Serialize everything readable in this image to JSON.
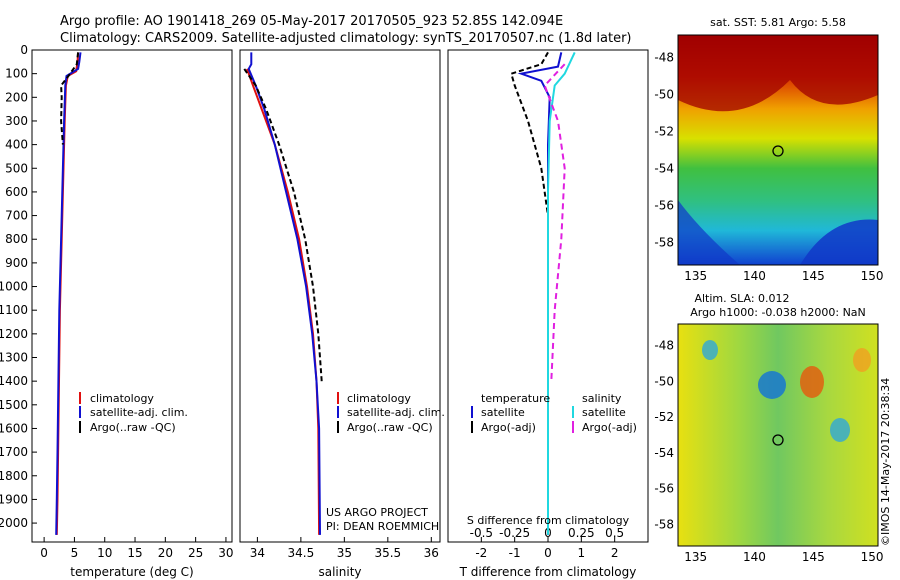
{
  "title_line1": "Argo profile: AO 1901418_269 05-May-2017 20170505_923 52.85S 142.094E",
  "title_line2": "Climatology: CARS2009. Satellite-adjusted climatology: synTS_20170507.nc (1.8d later)",
  "colors": {
    "climatology": "#e01010",
    "satellite": "#1010d0",
    "argo": "#000000",
    "sal_satellite": "#20d8e0",
    "sal_argo": "#e020e0"
  },
  "chart_data": [
    {
      "id": "temperature",
      "type": "line",
      "xlabel": "temperature (deg C)",
      "ylabel": "",
      "xlim": [
        -2,
        31
      ],
      "ylim": [
        2080,
        0
      ],
      "xticks": [
        0,
        5,
        10,
        15,
        20,
        25,
        30
      ],
      "yticks": [
        0,
        100,
        200,
        300,
        400,
        500,
        600,
        700,
        800,
        900,
        1000,
        1100,
        1200,
        1300,
        1400,
        1500,
        1600,
        1700,
        1800,
        1900,
        2000
      ],
      "legend": [
        "climatology",
        "satellite-adj. clim.",
        "Argo(..raw -QC)"
      ],
      "series": [
        {
          "name": "climatology",
          "color": "climatology",
          "dash": "",
          "points": [
            [
              5.6,
              10
            ],
            [
              5.5,
              50
            ],
            [
              5.3,
              90
            ],
            [
              3.9,
              110
            ],
            [
              3.6,
              150
            ],
            [
              3.4,
              300
            ],
            [
              3.2,
              500
            ],
            [
              3.0,
              700
            ],
            [
              2.8,
              900
            ],
            [
              2.6,
              1100
            ],
            [
              2.5,
              1300
            ],
            [
              2.4,
              1500
            ],
            [
              2.3,
              1700
            ],
            [
              2.2,
              1900
            ],
            [
              2.1,
              2050
            ]
          ]
        },
        {
          "name": "satellite-adj. clim.",
          "color": "satellite",
          "dash": "",
          "points": [
            [
              6.0,
              10
            ],
            [
              5.8,
              50
            ],
            [
              5.6,
              80
            ],
            [
              3.7,
              110
            ],
            [
              3.5,
              150
            ],
            [
              3.3,
              300
            ],
            [
              3.1,
              500
            ],
            [
              2.9,
              700
            ],
            [
              2.7,
              900
            ],
            [
              2.5,
              1100
            ],
            [
              2.4,
              1300
            ],
            [
              2.3,
              1500
            ],
            [
              2.2,
              1700
            ],
            [
              2.1,
              1900
            ],
            [
              2.0,
              2050
            ]
          ]
        },
        {
          "name": "Argo(..raw -QC)",
          "color": "argo",
          "dash": "5,3",
          "points": [
            [
              5.6,
              10
            ],
            [
              5.4,
              60
            ],
            [
              4.0,
              110
            ],
            [
              2.8,
              150
            ],
            [
              2.9,
              200
            ],
            [
              2.8,
              300
            ],
            [
              3.1,
              400
            ]
          ]
        }
      ]
    },
    {
      "id": "salinity",
      "type": "line",
      "xlabel": "salinity",
      "ylabel": "",
      "xlim": [
        33.8,
        36.1
      ],
      "ylim": [
        2080,
        0
      ],
      "xticks": [
        34,
        34.5,
        35,
        35.5,
        36
      ],
      "xtick_labels": [
        "34",
        "34.5",
        "35",
        "35.5",
        "36"
      ],
      "yticks": [],
      "legend": [
        "climatology",
        "satellite-adj. clim.",
        "Argo(..raw -QC)"
      ],
      "annotation": [
        "US ARGO PROJECT",
        "PI: DEAN ROEMMICH"
      ],
      "series": [
        {
          "name": "climatology",
          "color": "climatology",
          "dash": "",
          "points": [
            [
              33.88,
              80
            ],
            [
              33.95,
              150
            ],
            [
              34.05,
              250
            ],
            [
              34.2,
              400
            ],
            [
              34.35,
              600
            ],
            [
              34.48,
              800
            ],
            [
              34.57,
              1000
            ],
            [
              34.64,
              1200
            ],
            [
              34.68,
              1400
            ],
            [
              34.7,
              1600
            ],
            [
              34.71,
              2050
            ]
          ]
        },
        {
          "name": "satellite-adj. clim.",
          "color": "satellite",
          "dash": "",
          "points": [
            [
              33.93,
              10
            ],
            [
              33.93,
              60
            ],
            [
              33.9,
              80
            ],
            [
              33.98,
              150
            ],
            [
              34.08,
              250
            ],
            [
              34.2,
              400
            ],
            [
              34.33,
              600
            ],
            [
              34.46,
              800
            ],
            [
              34.56,
              1000
            ],
            [
              34.63,
              1200
            ],
            [
              34.68,
              1400
            ],
            [
              34.71,
              1600
            ],
            [
              34.72,
              2050
            ]
          ]
        },
        {
          "name": "Argo(..raw -QC)",
          "color": "argo",
          "dash": "5,3",
          "points": [
            [
              33.85,
              80
            ],
            [
              33.98,
              150
            ],
            [
              34.1,
              250
            ],
            [
              34.25,
              400
            ],
            [
              34.42,
              600
            ],
            [
              34.55,
              800
            ],
            [
              34.64,
              1000
            ],
            [
              34.7,
              1200
            ],
            [
              34.74,
              1400
            ]
          ]
        }
      ]
    },
    {
      "id": "difference",
      "type": "line",
      "xlabel": "T difference from climatology",
      "xlabel_top": "S difference from climatology",
      "ylabel": "",
      "xlim": [
        -3,
        3
      ],
      "ylim": [
        2080,
        0
      ],
      "xticks": [
        -2,
        -1,
        0,
        1,
        2
      ],
      "top_tick_labels": [
        "-0.5",
        "-0.25",
        "0",
        "0.25",
        "0.5"
      ],
      "yticks": [],
      "legend_titles": [
        "temperature",
        "salinity"
      ],
      "legend_left": [
        "satellite",
        "Argo(-adj)"
      ],
      "legend_right": [
        "satellite",
        "Argo(-adj)"
      ],
      "series": [
        {
          "name": "temperature satellite",
          "color": "satellite",
          "dash": "",
          "points": [
            [
              0.4,
              10
            ],
            [
              0.3,
              70
            ],
            [
              -0.8,
              100
            ],
            [
              -0.2,
              130
            ],
            [
              0.05,
              200
            ],
            [
              0.0,
              400
            ],
            [
              0.0,
              800
            ],
            [
              0.0,
              1400
            ],
            [
              0.0,
              2050
            ]
          ]
        },
        {
          "name": "temperature Argo(-adj)",
          "color": "argo",
          "dash": "5,3",
          "points": [
            [
              0,
              10
            ],
            [
              -0.2,
              60
            ],
            [
              -1.1,
              100
            ],
            [
              -1.0,
              150
            ],
            [
              -0.6,
              300
            ],
            [
              -0.2,
              500
            ],
            [
              0,
              700
            ],
            [
              0,
              1400
            ]
          ]
        },
        {
          "name": "salinity satellite",
          "color": "sal_satellite",
          "dash": "",
          "points": [
            [
              0.8,
              10
            ],
            [
              0.5,
              100
            ],
            [
              0.2,
              150
            ],
            [
              0.05,
              300
            ],
            [
              0.0,
              600
            ],
            [
              0.0,
              1400
            ],
            [
              0.0,
              2050
            ]
          ]
        },
        {
          "name": "salinity Argo(-adj)",
          "color": "sal_argo",
          "dash": "6,4",
          "points": [
            [
              0.5,
              60
            ],
            [
              -0.1,
              150
            ],
            [
              0.3,
              300
            ],
            [
              0.5,
              500
            ],
            [
              0.4,
              800
            ],
            [
              0.2,
              1100
            ],
            [
              0.1,
              1400
            ]
          ]
        }
      ]
    }
  ],
  "maps": [
    {
      "id": "sst-map",
      "title": "sat. SST: 5.81  Argo: 5.58",
      "xticks": [
        135,
        140,
        145,
        150
      ],
      "yticks": [
        -48,
        -50,
        -52,
        -54,
        -56,
        -58
      ]
    },
    {
      "id": "sla-map",
      "title_line1": "Altim. SLA: 0.012",
      "title_line2": "Argo h1000: -0.038 h2000: NaN",
      "xticks": [
        135,
        140,
        145,
        150
      ],
      "yticks": [
        -48,
        -50,
        -52,
        -54,
        -56,
        -58
      ]
    }
  ],
  "watermark": "©IMOS 14-May-2017 20:38:34"
}
